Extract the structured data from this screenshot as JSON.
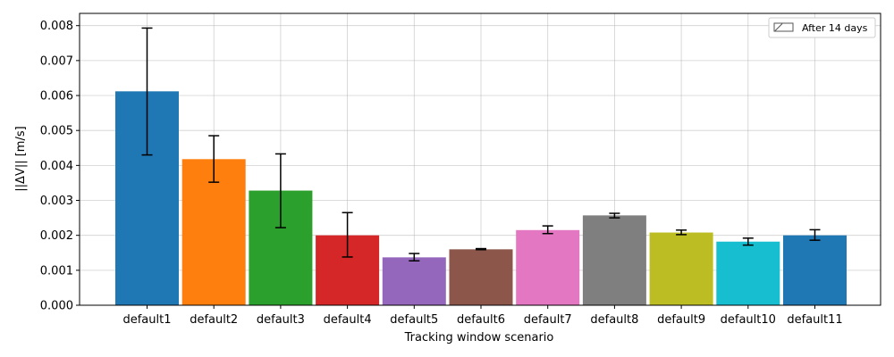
{
  "chart_data": {
    "type": "bar",
    "title": "",
    "xlabel": "Tracking window scenario",
    "ylabel": "||ΔV|| [m/s]",
    "categories": [
      "default1",
      "default2",
      "default3",
      "default4",
      "default5",
      "default6",
      "default7",
      "default8",
      "default9",
      "default10",
      "default11"
    ],
    "series": [
      {
        "name": "After 14 days",
        "values": [
          0.00612,
          0.00418,
          0.00328,
          0.002,
          0.00137,
          0.0016,
          0.00215,
          0.00257,
          0.00208,
          0.00182,
          0.002
        ],
        "error_low": [
          0.0043,
          0.00352,
          0.00222,
          0.00138,
          0.00127,
          0.00159,
          0.00205,
          0.0025,
          0.00202,
          0.00172,
          0.00186
        ],
        "error_high": [
          0.00793,
          0.00485,
          0.00433,
          0.00265,
          0.00148,
          0.00162,
          0.00227,
          0.00263,
          0.00215,
          0.00192,
          0.00216
        ]
      }
    ],
    "bar_colors": [
      "#1f77b4",
      "#ff7f0e",
      "#2ca02c",
      "#d62728",
      "#9467bd",
      "#8c564b",
      "#e377c2",
      "#7f7f7f",
      "#bcbd22",
      "#17becf",
      "#1f77b4"
    ],
    "ylim": [
      0,
      0.00835
    ],
    "yticks": [
      "0.000",
      "0.001",
      "0.002",
      "0.003",
      "0.004",
      "0.005",
      "0.006",
      "0.007",
      "0.008"
    ],
    "grid": true,
    "legend_position": "top-right"
  }
}
